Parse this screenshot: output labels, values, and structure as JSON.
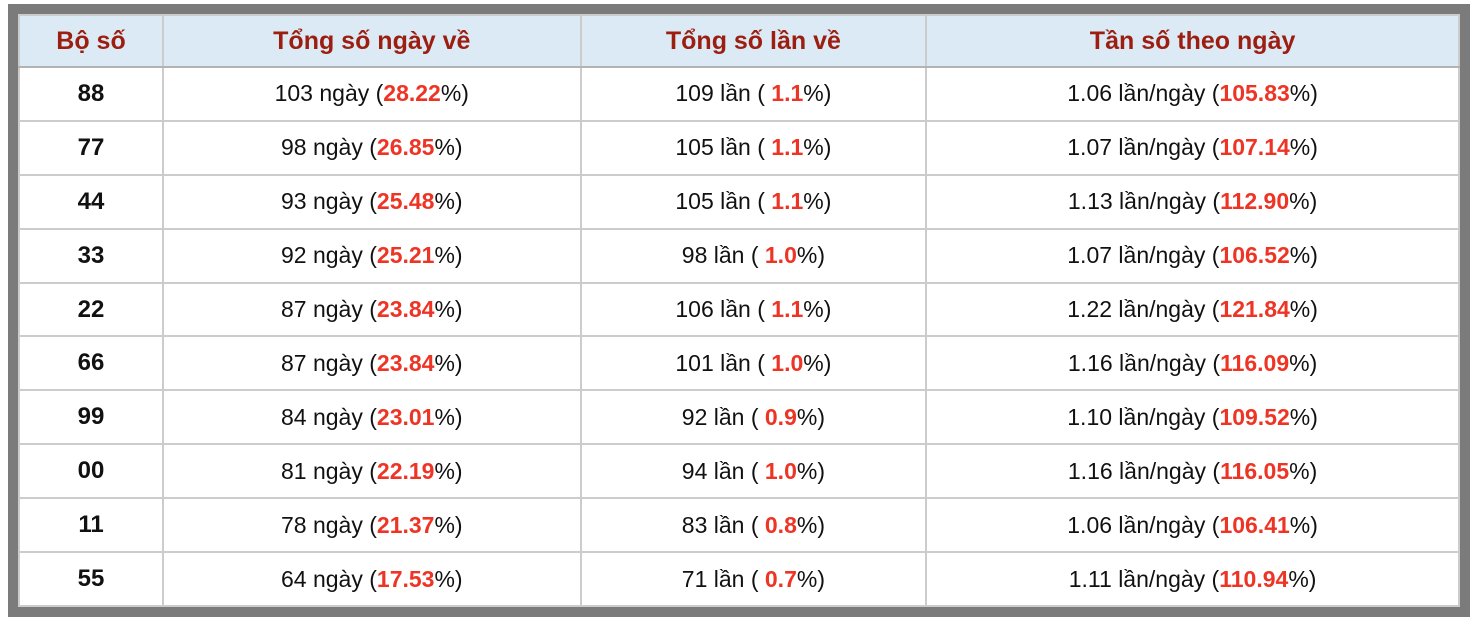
{
  "table": {
    "headers": [
      "Bộ số",
      "Tổng số ngày về",
      "Tổng số lần về",
      "Tần số theo ngày"
    ],
    "pct_suffix": "%)",
    "rows": [
      {
        "pair": "88",
        "days_prefix": "103 ngày (",
        "days_value": "28.22",
        "times_prefix": "109 lần ( ",
        "times_value": "1.1",
        "freq_prefix": "1.06 lần/ngày (",
        "freq_value": "105.83"
      },
      {
        "pair": "77",
        "days_prefix": "98 ngày (",
        "days_value": "26.85",
        "times_prefix": "105 lần ( ",
        "times_value": "1.1",
        "freq_prefix": "1.07 lần/ngày (",
        "freq_value": "107.14"
      },
      {
        "pair": "44",
        "days_prefix": "93 ngày (",
        "days_value": "25.48",
        "times_prefix": "105 lần ( ",
        "times_value": "1.1",
        "freq_prefix": "1.13 lần/ngày (",
        "freq_value": "112.90"
      },
      {
        "pair": "33",
        "days_prefix": "92 ngày (",
        "days_value": "25.21",
        "times_prefix": "98 lần ( ",
        "times_value": "1.0",
        "freq_prefix": "1.07 lần/ngày (",
        "freq_value": "106.52"
      },
      {
        "pair": "22",
        "days_prefix": "87 ngày (",
        "days_value": "23.84",
        "times_prefix": "106 lần ( ",
        "times_value": "1.1",
        "freq_prefix": "1.22 lần/ngày (",
        "freq_value": "121.84"
      },
      {
        "pair": "66",
        "days_prefix": "87 ngày (",
        "days_value": "23.84",
        "times_prefix": "101 lần ( ",
        "times_value": "1.0",
        "freq_prefix": "1.16 lần/ngày (",
        "freq_value": "116.09"
      },
      {
        "pair": "99",
        "days_prefix": "84 ngày (",
        "days_value": "23.01",
        "times_prefix": "92 lần ( ",
        "times_value": "0.9",
        "freq_prefix": "1.10 lần/ngày (",
        "freq_value": "109.52"
      },
      {
        "pair": "00",
        "days_prefix": "81 ngày (",
        "days_value": "22.19",
        "times_prefix": "94 lần ( ",
        "times_value": "1.0",
        "freq_prefix": "1.16 lần/ngày (",
        "freq_value": "116.05"
      },
      {
        "pair": "11",
        "days_prefix": "78 ngày (",
        "days_value": "21.37",
        "times_prefix": "83 lần ( ",
        "times_value": "0.8",
        "freq_prefix": "1.06 lần/ngày (",
        "freq_value": "106.41"
      },
      {
        "pair": "55",
        "days_prefix": "64 ngày (",
        "days_value": "17.53",
        "times_prefix": "71 lần ( ",
        "times_value": "0.7",
        "freq_prefix": "1.11 lần/ngày (",
        "freq_value": "110.94"
      }
    ]
  },
  "colors": {
    "frame_gray": "#7b7b7b",
    "header_bg": "#dbeaf4",
    "header_text": "#9c1e10",
    "highlight_red": "#ee3424",
    "cell_border": "#cccccc"
  }
}
